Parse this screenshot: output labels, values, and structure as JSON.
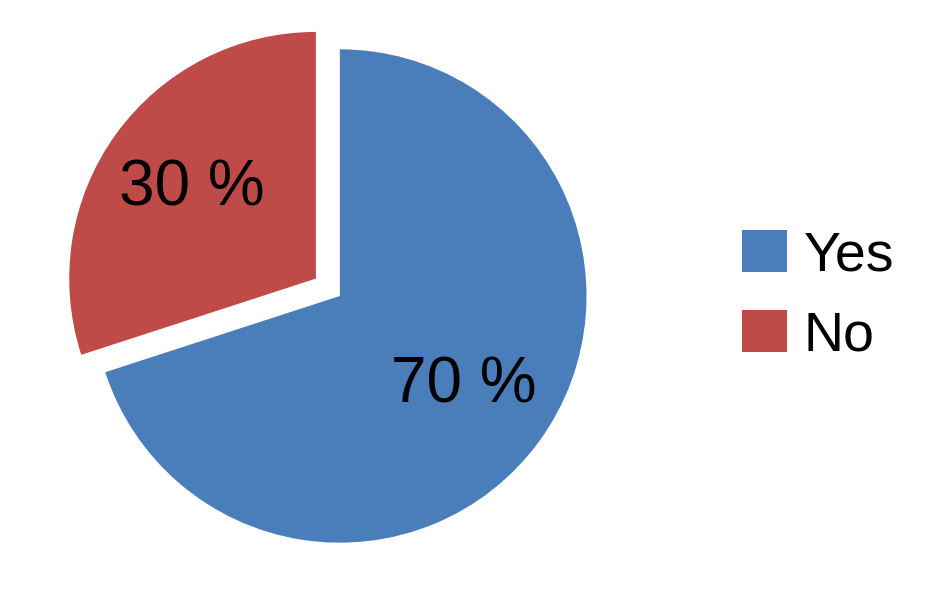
{
  "chart_data": {
    "type": "pie",
    "categories": [
      "Yes",
      "No"
    ],
    "values": [
      70,
      30
    ],
    "value_labels": [
      "70 %",
      "30 %"
    ],
    "colors": [
      "#4a7ebb",
      "#be4b48"
    ],
    "data_labels": true,
    "legend": "right"
  }
}
